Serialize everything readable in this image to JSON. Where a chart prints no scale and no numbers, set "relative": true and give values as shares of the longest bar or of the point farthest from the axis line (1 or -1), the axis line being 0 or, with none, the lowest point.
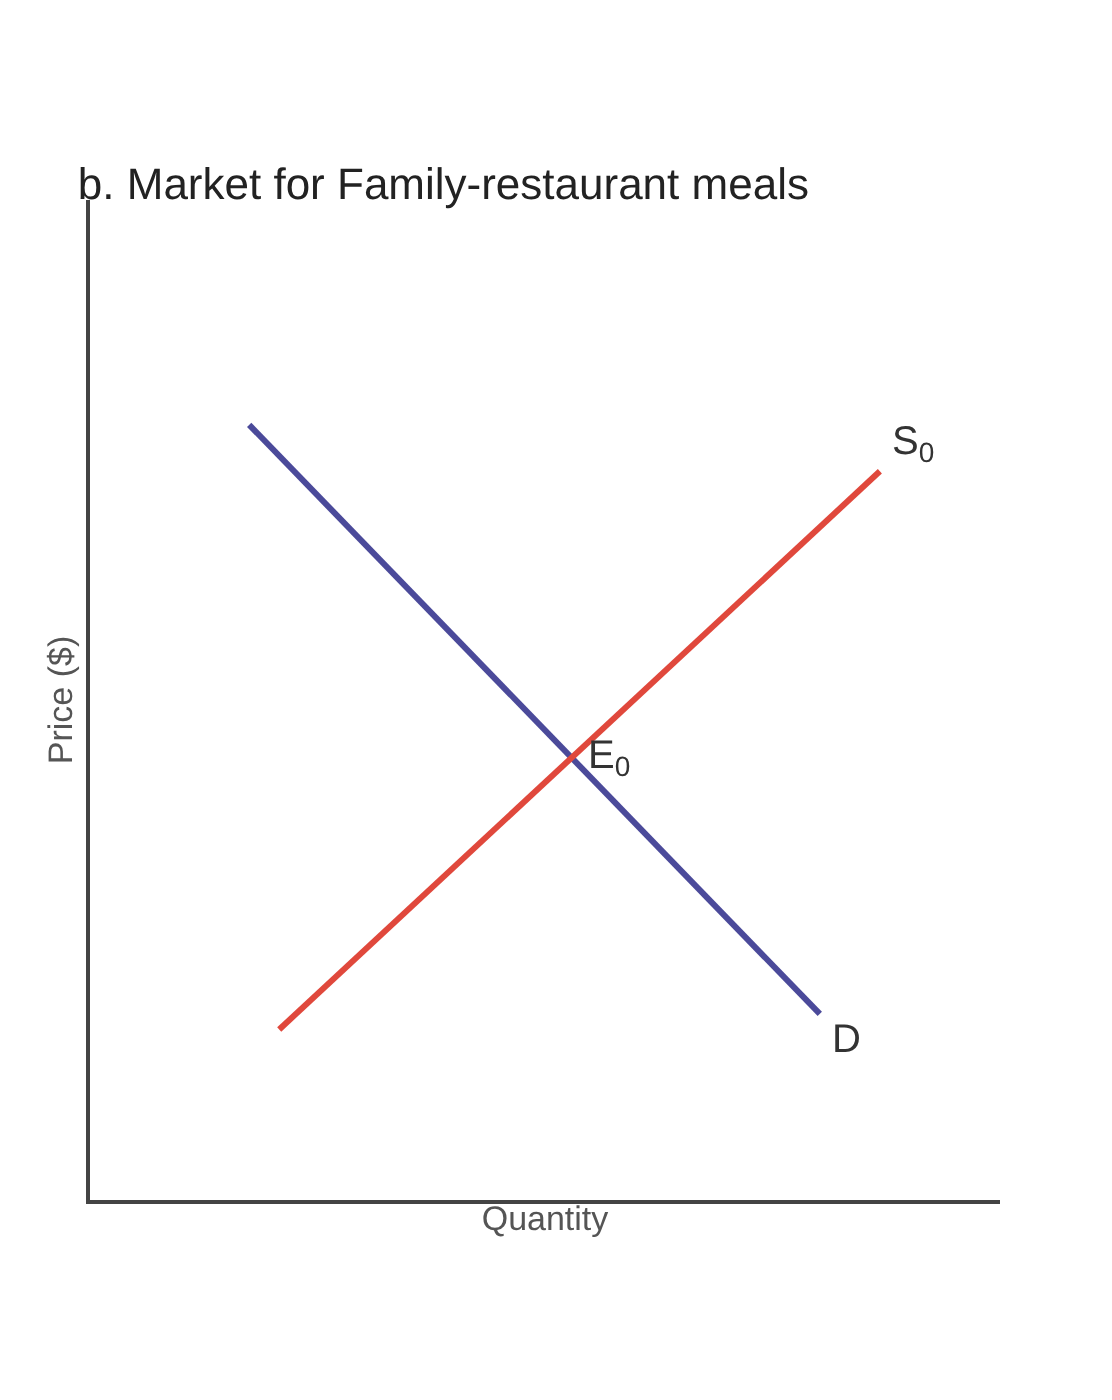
{
  "chart_data": {
    "type": "line",
    "title": "b. Market for Family-restaurant meals",
    "xlabel": "Quantity",
    "ylabel": "Price ($)",
    "relative": true,
    "categories": [
      null,
      null,
      null,
      null,
      null,
      null,
      null,
      null,
      null,
      null,
      null,
      null,
      null,
      null,
      null,
      null,
      null,
      null,
      null,
      null,
      null,
      null
    ],
    "series": [
      {
        "name": "D",
        "color": "#4b4a9a",
        "values": [
          1.0,
          null,
          null,
          null,
          null,
          null,
          null,
          null,
          null,
          null,
          null,
          null,
          null,
          null,
          null,
          null,
          null,
          null,
          null,
          0.24,
          null,
          null
        ]
      },
      {
        "name": "S$_{0}$",
        "color": "#e0483c",
        "values": [
          null,
          0.22,
          null,
          null,
          null,
          null,
          null,
          null,
          null,
          null,
          null,
          null,
          null,
          null,
          null,
          null,
          null,
          null,
          null,
          null,
          null,
          0.94
        ]
      }
    ],
    "annotations": [
      "E$_{0}$"
    ],
    "legend": false,
    "marker": "none",
    "line_style": "solid",
    "tick_labels": false
  }
}
